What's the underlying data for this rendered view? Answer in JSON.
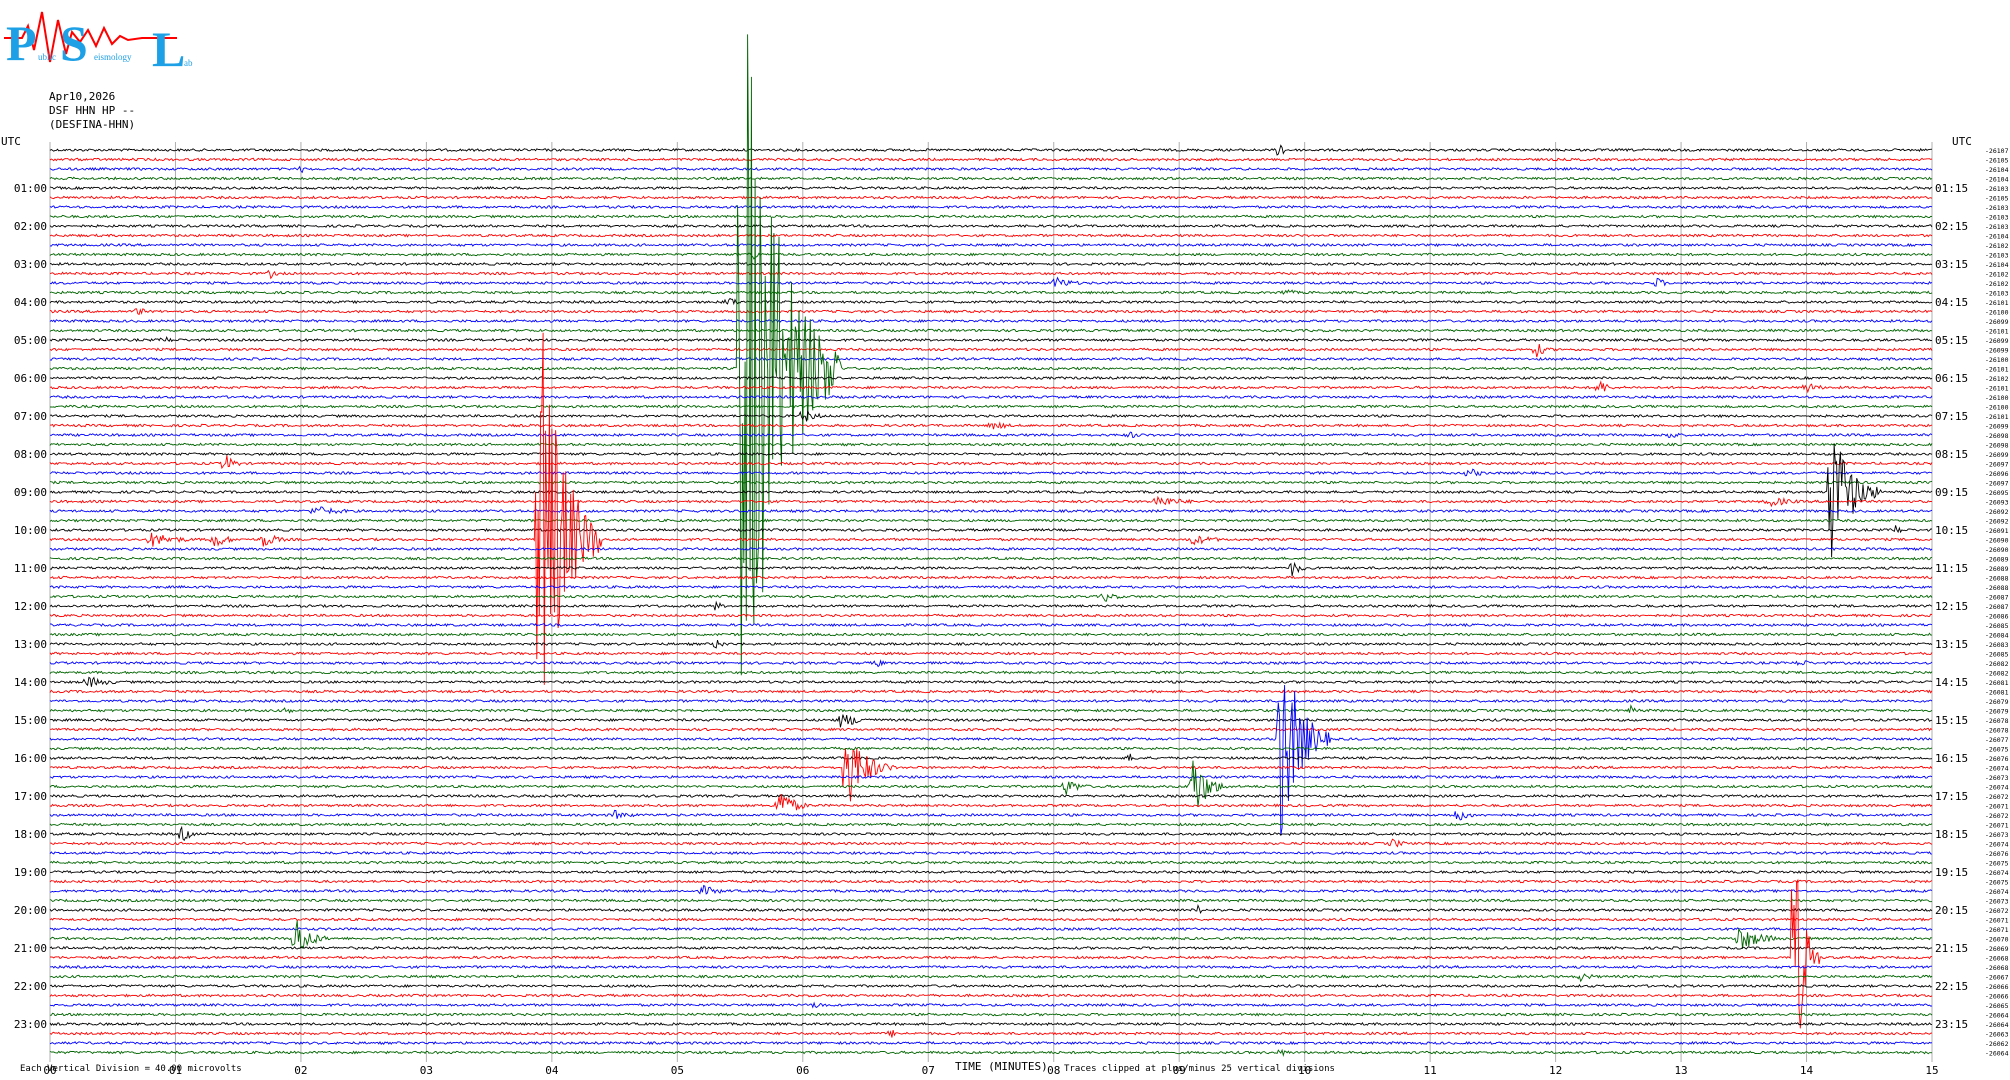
{
  "logo": {
    "big_letters": [
      "P",
      "S",
      "L"
    ],
    "small_words": [
      "ublic",
      "eismology",
      "ab"
    ]
  },
  "header": {
    "date": "Apr10,2026",
    "channel": "DSF HHN HP --",
    "station": "(DESFINA-HHN)"
  },
  "colors": {
    "trace_cycle": [
      "#000000",
      "#ff0000",
      "#0000ff",
      "#006400"
    ],
    "grid": "#b0b0b0",
    "logo": "#1ea0e6",
    "logo_wave": "#ff0000"
  },
  "chart_data": {
    "type": "line",
    "title": "",
    "xlabel": "TIME (MINUTES)",
    "xlim": [
      0,
      15
    ],
    "x_ticks": [
      "00",
      "01",
      "02",
      "03",
      "04",
      "05",
      "06",
      "07",
      "08",
      "09",
      "10",
      "11",
      "12",
      "13",
      "14",
      "15"
    ],
    "rows_per_hour": 4,
    "row_count": 96,
    "left_corner_label": "UTC",
    "right_corner_label": "UTC",
    "left_labels": [
      "01:00",
      "02:00",
      "03:00",
      "04:00",
      "05:00",
      "06:00",
      "07:00",
      "08:00",
      "09:00",
      "10:00",
      "11:00",
      "12:00",
      "13:00",
      "14:00",
      "15:00",
      "16:00",
      "17:00",
      "18:00",
      "19:00",
      "20:00",
      "21:00",
      "22:00",
      "23:00"
    ],
    "right_labels": [
      "01:15",
      "02:15",
      "03:15",
      "04:15",
      "05:15",
      "06:15",
      "07:15",
      "08:15",
      "09:15",
      "10:15",
      "11:15",
      "12:15",
      "13:15",
      "14:15",
      "15:15",
      "16:15",
      "17:15",
      "18:15",
      "19:15",
      "20:15",
      "21:15",
      "22:15",
      "23:15"
    ],
    "row_baselines": [
      26107,
      26105,
      26104,
      26104,
      26103,
      26105,
      26103,
      26103,
      26103,
      26104,
      26102,
      26103,
      26104,
      26102,
      26102,
      26103,
      26101,
      26100,
      26099,
      26101,
      26099,
      26099,
      26100,
      26101,
      26102,
      26101,
      26100,
      26100,
      26101,
      26099,
      26098,
      26098,
      26099,
      26097,
      26096,
      26097,
      26095,
      26093,
      26092,
      26092,
      26091,
      26090,
      26090,
      26089,
      26089,
      26088,
      26088,
      26087,
      26087,
      26086,
      26085,
      26084,
      26083,
      26085,
      26082,
      26082,
      26081,
      26081,
      26079,
      26079,
      26078,
      26078,
      26077,
      26075,
      26076,
      26074,
      26073,
      26074,
      26072,
      26071,
      26072,
      26071,
      26073,
      26074,
      26076,
      26075,
      26074,
      26075,
      26074,
      26073,
      26072,
      26071,
      26071,
      26070,
      26069,
      26068,
      26068,
      26067,
      26066,
      26066,
      26065,
      26064,
      26064,
      26063,
      26062,
      26064
    ],
    "events": [
      {
        "row": 0,
        "minute": 9.8,
        "amp": 12,
        "dur": 0.1
      },
      {
        "row": 2,
        "minute": 2.0,
        "amp": 5,
        "dur": 0.1
      },
      {
        "row": 11,
        "minute": 5.6,
        "amp": 6,
        "dur": 0.15
      },
      {
        "row": 13,
        "minute": 1.75,
        "amp": 6,
        "dur": 0.15
      },
      {
        "row": 14,
        "minute": 8.0,
        "amp": 7,
        "dur": 0.4
      },
      {
        "row": 14,
        "minute": 12.8,
        "amp": 7,
        "dur": 0.2
      },
      {
        "row": 15,
        "minute": 9.85,
        "amp": 5,
        "dur": 0.2
      },
      {
        "row": 16,
        "minute": 5.4,
        "amp": 7,
        "dur": 0.2
      },
      {
        "row": 17,
        "minute": 0.7,
        "amp": 6,
        "dur": 0.15
      },
      {
        "row": 20,
        "minute": 0.9,
        "amp": 5,
        "dur": 0.2
      },
      {
        "row": 21,
        "minute": 11.85,
        "amp": 8,
        "dur": 0.2
      },
      {
        "row": 23,
        "minute": 5.5,
        "amp": 440,
        "dur": 0.8
      },
      {
        "row": 25,
        "minute": 12.35,
        "amp": 9,
        "dur": 0.2
      },
      {
        "row": 25,
        "minute": 14.0,
        "amp": 6,
        "dur": 0.3
      },
      {
        "row": 28,
        "minute": 6.0,
        "amp": 8,
        "dur": 0.3
      },
      {
        "row": 29,
        "minute": 7.5,
        "amp": 5,
        "dur": 0.4
      },
      {
        "row": 30,
        "minute": 8.6,
        "amp": 4,
        "dur": 0.3
      },
      {
        "row": 30,
        "minute": 12.9,
        "amp": 6,
        "dur": 0.2
      },
      {
        "row": 33,
        "minute": 1.4,
        "amp": 10,
        "dur": 0.2
      },
      {
        "row": 34,
        "minute": 11.3,
        "amp": 6,
        "dur": 0.3
      },
      {
        "row": 36,
        "minute": 14.2,
        "amp": 80,
        "dur": 0.4
      },
      {
        "row": 37,
        "minute": 8.8,
        "amp": 7,
        "dur": 0.6
      },
      {
        "row": 37,
        "minute": 13.7,
        "amp": 6,
        "dur": 0.5
      },
      {
        "row": 38,
        "minute": 2.1,
        "amp": 6,
        "dur": 0.6
      },
      {
        "row": 40,
        "minute": 14.7,
        "amp": 6,
        "dur": 0.2
      },
      {
        "row": 41,
        "minute": 0.8,
        "amp": 8,
        "dur": 0.6
      },
      {
        "row": 41,
        "minute": 1.3,
        "amp": 10,
        "dur": 0.3
      },
      {
        "row": 41,
        "minute": 1.7,
        "amp": 9,
        "dur": 0.3
      },
      {
        "row": 41,
        "minute": 3.9,
        "amp": 260,
        "dur": 0.5
      },
      {
        "row": 41,
        "minute": 9.1,
        "amp": 6,
        "dur": 0.5
      },
      {
        "row": 44,
        "minute": 9.9,
        "amp": 9,
        "dur": 0.2
      },
      {
        "row": 47,
        "minute": 8.4,
        "amp": 6,
        "dur": 0.3
      },
      {
        "row": 48,
        "minute": 5.3,
        "amp": 5,
        "dur": 0.2
      },
      {
        "row": 52,
        "minute": 5.3,
        "amp": 6,
        "dur": 0.2
      },
      {
        "row": 54,
        "minute": 6.6,
        "amp": 6,
        "dur": 0.1
      },
      {
        "row": 54,
        "minute": 13.95,
        "amp": 5,
        "dur": 0.2
      },
      {
        "row": 56,
        "minute": 0.3,
        "amp": 6,
        "dur": 0.5
      },
      {
        "row": 59,
        "minute": 1.9,
        "amp": 5,
        "dur": 0.15
      },
      {
        "row": 59,
        "minute": 12.6,
        "amp": 5,
        "dur": 0.2
      },
      {
        "row": 60,
        "minute": 6.3,
        "amp": 8,
        "dur": 0.5
      },
      {
        "row": 62,
        "minute": 9.8,
        "amp": 120,
        "dur": 0.4
      },
      {
        "row": 64,
        "minute": 8.6,
        "amp": 5,
        "dur": 0.2
      },
      {
        "row": 65,
        "minute": 6.35,
        "amp": 45,
        "dur": 0.4
      },
      {
        "row": 67,
        "minute": 8.1,
        "amp": 9,
        "dur": 0.3
      },
      {
        "row": 67,
        "minute": 9.1,
        "amp": 40,
        "dur": 0.3
      },
      {
        "row": 69,
        "minute": 5.8,
        "amp": 22,
        "dur": 0.3
      },
      {
        "row": 70,
        "minute": 4.5,
        "amp": 5,
        "dur": 0.4
      },
      {
        "row": 70,
        "minute": 11.2,
        "amp": 8,
        "dur": 0.3
      },
      {
        "row": 72,
        "minute": 1.05,
        "amp": 9,
        "dur": 0.2
      },
      {
        "row": 73,
        "minute": 10.7,
        "amp": 5,
        "dur": 0.3
      },
      {
        "row": 78,
        "minute": 5.2,
        "amp": 6,
        "dur": 0.4
      },
      {
        "row": 80,
        "minute": 9.15,
        "amp": 6,
        "dur": 0.1
      },
      {
        "row": 83,
        "minute": 1.95,
        "amp": 26,
        "dur": 0.3
      },
      {
        "row": 83,
        "minute": 13.45,
        "amp": 14,
        "dur": 0.5
      },
      {
        "row": 85,
        "minute": 13.9,
        "amp": 150,
        "dur": 0.2
      },
      {
        "row": 87,
        "minute": 12.2,
        "amp": 5,
        "dur": 0.3
      },
      {
        "row": 90,
        "minute": 6.1,
        "amp": 5,
        "dur": 0.2
      },
      {
        "row": 93,
        "minute": 6.7,
        "amp": 5,
        "dur": 0.2
      },
      {
        "row": 95,
        "minute": 9.8,
        "amp": 5,
        "dur": 0.2
      }
    ]
  },
  "footer": {
    "scale_prefix": "Each Vertical Division =",
    "scale_value": "40.00 microvolts",
    "clip_note": "Traces clipped at plus/minus 25 vertical divisions"
  }
}
